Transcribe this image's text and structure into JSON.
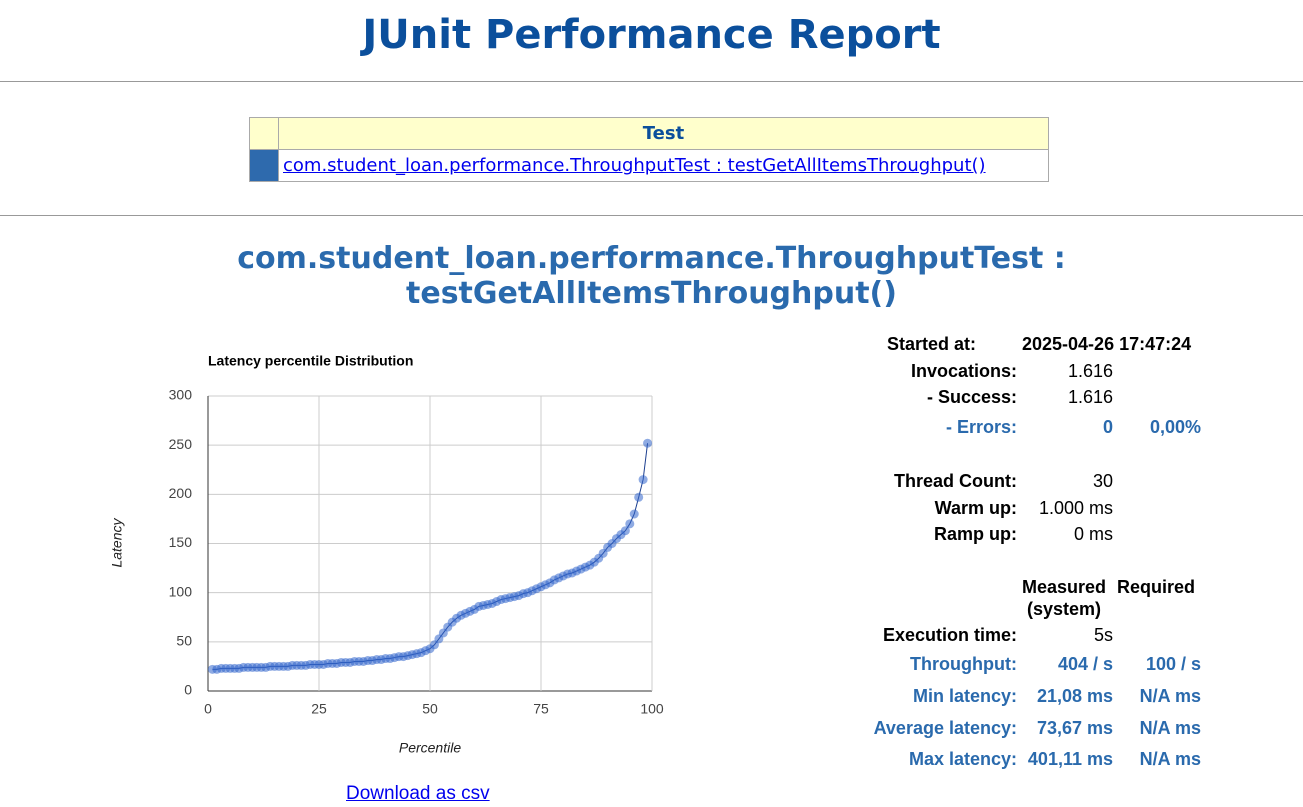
{
  "header": {
    "title": "JUnit Performance Report"
  },
  "table": {
    "header": "Test",
    "rows": [
      [
        "com.student_loan.performance.ThroughputTest : testGetAllItemsThroughput()"
      ]
    ]
  },
  "section": {
    "title": "com.student_loan.performance.ThroughputTest : testGetAllItemsThroughput()"
  },
  "chart_data": {
    "type": "line",
    "title": "Latency percentile Distribution",
    "x_label": "Percentile",
    "y_label": "Latency",
    "color": "#3366cc",
    "markers": true,
    "grid": true,
    "x": [
      1,
      2,
      3,
      4,
      5,
      6,
      7,
      8,
      9,
      10,
      11,
      12,
      13,
      14,
      15,
      16,
      17,
      18,
      19,
      20,
      21,
      22,
      23,
      24,
      25,
      26,
      27,
      28,
      29,
      30,
      31,
      32,
      33,
      34,
      35,
      36,
      37,
      38,
      39,
      40,
      41,
      42,
      43,
      44,
      45,
      46,
      47,
      48,
      49,
      50,
      51,
      52,
      53,
      54,
      55,
      56,
      57,
      58,
      59,
      60,
      61,
      62,
      63,
      64,
      65,
      66,
      67,
      68,
      69,
      70,
      71,
      72,
      73,
      74,
      75,
      76,
      77,
      78,
      79,
      80,
      81,
      82,
      83,
      84,
      85,
      86,
      87,
      88,
      89,
      90,
      91,
      92,
      93,
      94,
      95,
      96,
      97,
      98,
      99
    ],
    "values": [
      22,
      22,
      23,
      23,
      23,
      23,
      23,
      24,
      24,
      24,
      24,
      24,
      24,
      25,
      25,
      25,
      25,
      25,
      26,
      26,
      26,
      26,
      27,
      27,
      27,
      27,
      28,
      28,
      28,
      29,
      29,
      29,
      30,
      30,
      30,
      31,
      31,
      32,
      32,
      33,
      33,
      34,
      35,
      35,
      36,
      37,
      38,
      39,
      41,
      43,
      47,
      53,
      59,
      65,
      70,
      74,
      77,
      79,
      81,
      83,
      86,
      87,
      88,
      89,
      91,
      93,
      94,
      95,
      96,
      97,
      99,
      100,
      102,
      104,
      106,
      108,
      110,
      113,
      115,
      117,
      119,
      120,
      122,
      124,
      126,
      128,
      131,
      135,
      140,
      146,
      150,
      155,
      159,
      163,
      170,
      180,
      197,
      215,
      252
    ],
    "xlim": [
      0,
      100
    ],
    "xticks": [
      0,
      25,
      50,
      75,
      100
    ],
    "ylim": [
      0,
      300
    ],
    "yticks": [
      0,
      50,
      100,
      150,
      200,
      250,
      300
    ]
  },
  "download": "Download as csv",
  "stats": {
    "measured": "Measured",
    "required": "Required",
    "system": "(system)",
    "rows": [
      {
        "label": "Started at:",
        "values": [
          "2025-04-26 17:47:24"
        ]
      },
      {
        "label": "Invocations:",
        "values": [
          "1.616"
        ]
      },
      {
        "label": "- Success:",
        "values": [
          "1.616"
        ]
      },
      {
        "label": "- Errors:",
        "values": [
          "0",
          "0,00%"
        ]
      },
      {
        "label": "Thread Count:",
        "values": [
          "30"
        ]
      },
      {
        "label": "Warm up:",
        "values": [
          "1.000 ms"
        ]
      },
      {
        "label": "Ramp up:",
        "values": [
          "0 ms"
        ]
      },
      {
        "label": "Execution time:",
        "values": [
          "5s"
        ]
      },
      {
        "label": "Throughput:",
        "values": [
          "404 / s",
          "100 / s"
        ]
      },
      {
        "label": "Min latency:",
        "values": [
          "21,08 ms",
          "N/A ms"
        ]
      },
      {
        "label": "Average latency:",
        "values": [
          "73,67 ms",
          "N/A ms"
        ]
      },
      {
        "label": "Max latency:",
        "values": [
          "401,11 ms",
          "N/A ms"
        ]
      }
    ]
  }
}
